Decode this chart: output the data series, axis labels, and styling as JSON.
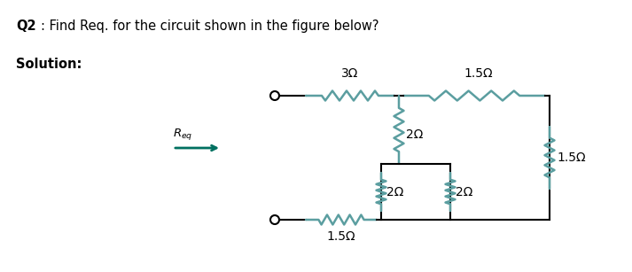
{
  "title_q": "Q2",
  "title_text": ": Find Req. for the circuit shown in the figure below?",
  "solution_label": "Solution:",
  "bg_color": "#ffffff",
  "resistor_color": "#5b9ea0",
  "wire_color": "#000000",
  "arrow_color": "#007060",
  "res_3": "3Ω",
  "res_15_top": "1.5Ω",
  "res_2_top_vert": "2Ω",
  "res_15_right_vert": "1.5Ω",
  "res_2_bot_left": "2Ω",
  "res_2_bot_right": "2Ω",
  "res_15_bot": "1.5Ω"
}
